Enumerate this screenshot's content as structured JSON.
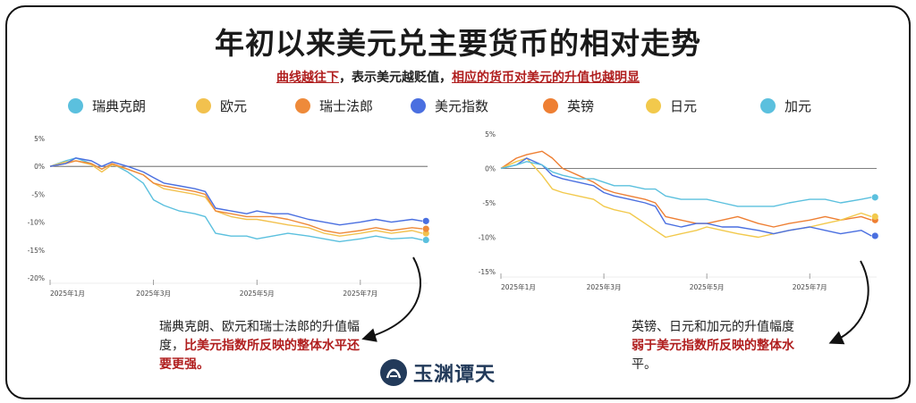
{
  "title": "年初以来美元兑主要货币的相对走势",
  "subtitle": {
    "part1": "曲线越往下",
    "part2": "，表示美元越贬值，",
    "part3": "相应的货币对美元的升值也越明显"
  },
  "legend": [
    {
      "label": "瑞典克朗",
      "color": "#5bc0de"
    },
    {
      "label": "欧元",
      "color": "#f2c14e"
    },
    {
      "label": "瑞士法郎",
      "color": "#ee8a3a"
    },
    {
      "label": "美元指数",
      "color": "#4a6fe0"
    },
    {
      "label": "英镑",
      "color": "#ee7f33"
    },
    {
      "label": "日元",
      "color": "#f2c94c"
    },
    {
      "label": "加元",
      "color": "#5bc0de"
    }
  ],
  "annotations": {
    "left_plain": "瑞典克朗、欧元和瑞士法郎的升值幅度，",
    "left_red": "比美元指数所反映的整体水平还要更强。",
    "right_plain": "英镑、日元和加元的升值幅度",
    "right_red": "弱于美元指数所反映的整体水",
    "right_tail": "平。"
  },
  "logo": {
    "text": "玉渊谭天"
  },
  "chart_data": [
    {
      "type": "line",
      "x_ticks": [
        "2025年1月",
        "2025年3月",
        "2025年5月",
        "2025年7月"
      ],
      "x_tick_months": [
        0,
        2,
        4,
        6
      ],
      "y_ticks": [
        "5%",
        "0%",
        "-5%",
        "-10%",
        "-15%",
        "-20%"
      ],
      "ylim": [
        -20,
        5
      ],
      "xlim_months": [
        0,
        7.3
      ],
      "series": [
        {
          "name": "瑞典克朗",
          "color": "#5bc0de",
          "x": [
            0,
            0.3,
            0.5,
            0.8,
            1.0,
            1.2,
            1.5,
            1.8,
            2.0,
            2.2,
            2.5,
            2.8,
            3.0,
            3.2,
            3.5,
            3.8,
            4.0,
            4.3,
            4.6,
            5.0,
            5.3,
            5.6,
            6.0,
            6.3,
            6.6,
            7.0,
            7.2
          ],
          "y": [
            0,
            1,
            1.5,
            0.5,
            -0.5,
            0.5,
            -1,
            -3,
            -6,
            -7,
            -8,
            -8.5,
            -9,
            -12,
            -12.5,
            -12.5,
            -13,
            -12.5,
            -12,
            -12.5,
            -13,
            -13.5,
            -13,
            -12.5,
            -13,
            -12.8,
            -13.2
          ]
        },
        {
          "name": "欧元",
          "color": "#f2c14e",
          "x": [
            0,
            0.3,
            0.5,
            0.8,
            1.0,
            1.2,
            1.5,
            1.8,
            2.0,
            2.2,
            2.5,
            2.8,
            3.0,
            3.2,
            3.5,
            3.8,
            4.0,
            4.3,
            4.6,
            5.0,
            5.3,
            5.6,
            6.0,
            6.3,
            6.6,
            7.0,
            7.2
          ],
          "y": [
            0,
            0.8,
            1,
            0.3,
            -1,
            0.3,
            -0.5,
            -1.5,
            -3,
            -4,
            -4.5,
            -5,
            -5.5,
            -8,
            -9,
            -9.5,
            -9.5,
            -10,
            -10.5,
            -11,
            -12,
            -12.5,
            -12,
            -11.5,
            -12,
            -11.5,
            -12
          ]
        },
        {
          "name": "瑞士法郎",
          "color": "#ee8a3a",
          "x": [
            0,
            0.3,
            0.5,
            0.8,
            1.0,
            1.2,
            1.5,
            1.8,
            2.0,
            2.2,
            2.5,
            2.8,
            3.0,
            3.2,
            3.5,
            3.8,
            4.0,
            4.3,
            4.6,
            5.0,
            5.3,
            5.6,
            6.0,
            6.3,
            6.6,
            7.0,
            7.2
          ],
          "y": [
            0,
            0.5,
            1,
            0.5,
            -0.5,
            0.5,
            -0.5,
            -1.5,
            -3,
            -3.5,
            -4,
            -4.5,
            -5,
            -8,
            -8.5,
            -9,
            -9,
            -9,
            -9.5,
            -10.5,
            -11.5,
            -12,
            -11.5,
            -11,
            -11.5,
            -11,
            -11.2
          ]
        },
        {
          "name": "美元指数",
          "color": "#4a6fe0",
          "x": [
            0,
            0.3,
            0.5,
            0.8,
            1.0,
            1.2,
            1.5,
            1.8,
            2.0,
            2.2,
            2.5,
            2.8,
            3.0,
            3.2,
            3.5,
            3.8,
            4.0,
            4.3,
            4.6,
            5.0,
            5.3,
            5.6,
            6.0,
            6.3,
            6.6,
            7.0,
            7.2
          ],
          "y": [
            0,
            0.5,
            1.5,
            1,
            0,
            0.8,
            0,
            -1,
            -2,
            -3,
            -3.5,
            -4,
            -4.5,
            -7.5,
            -8,
            -8.5,
            -8,
            -8.5,
            -8.5,
            -9.5,
            -10,
            -10.5,
            -10,
            -9.5,
            -10,
            -9.5,
            -9.8
          ]
        }
      ]
    },
    {
      "type": "line",
      "x_ticks": [
        "2025年1月",
        "2025年3月",
        "2025年5月",
        "2025年7月"
      ],
      "x_tick_months": [
        0,
        2,
        4,
        6
      ],
      "y_ticks": [
        "5%",
        "0%",
        "-5%",
        "-10%",
        "-15%"
      ],
      "ylim": [
        -15,
        5
      ],
      "xlim_months": [
        0,
        7.3
      ],
      "series": [
        {
          "name": "英镑",
          "color": "#ee7f33",
          "x": [
            0,
            0.3,
            0.5,
            0.8,
            1.0,
            1.2,
            1.5,
            1.8,
            2.0,
            2.2,
            2.5,
            2.8,
            3.0,
            3.2,
            3.5,
            3.8,
            4.0,
            4.3,
            4.6,
            5.0,
            5.3,
            5.6,
            6.0,
            6.3,
            6.6,
            7.0,
            7.2
          ],
          "y": [
            0,
            1.5,
            2,
            2.5,
            1.5,
            0,
            -1,
            -2,
            -3,
            -3.5,
            -4,
            -4.5,
            -5,
            -7,
            -7.5,
            -8,
            -8,
            -7.5,
            -7,
            -8,
            -8.5,
            -8,
            -7.5,
            -7,
            -7.5,
            -7,
            -7.5
          ]
        },
        {
          "name": "日元",
          "color": "#f2c94c",
          "x": [
            0,
            0.3,
            0.5,
            0.8,
            1.0,
            1.2,
            1.5,
            1.8,
            2.0,
            2.2,
            2.5,
            2.8,
            3.0,
            3.2,
            3.5,
            3.8,
            4.0,
            4.3,
            4.6,
            5.0,
            5.3,
            5.6,
            6.0,
            6.3,
            6.6,
            7.0,
            7.2
          ],
          "y": [
            0,
            1,
            1.5,
            -1,
            -3,
            -3.5,
            -4,
            -4.5,
            -5.5,
            -6,
            -6.5,
            -8,
            -9,
            -10,
            -9.5,
            -9,
            -8.5,
            -9,
            -9.5,
            -10,
            -9.5,
            -9,
            -8.5,
            -8,
            -7.5,
            -6.5,
            -7
          ]
        },
        {
          "name": "美元指数",
          "color": "#4a6fe0",
          "x": [
            0,
            0.3,
            0.5,
            0.8,
            1.0,
            1.2,
            1.5,
            1.8,
            2.0,
            2.2,
            2.5,
            2.8,
            3.0,
            3.2,
            3.5,
            3.8,
            4.0,
            4.3,
            4.6,
            5.0,
            5.3,
            5.6,
            6.0,
            6.3,
            6.6,
            7.0,
            7.2
          ],
          "y": [
            0,
            0.5,
            1.5,
            0.5,
            -1,
            -1.5,
            -2,
            -2.5,
            -3.5,
            -4,
            -4.5,
            -5,
            -5.5,
            -8,
            -8.5,
            -8,
            -8,
            -8.5,
            -8.5,
            -9,
            -9.5,
            -9,
            -8.5,
            -9,
            -9.5,
            -9,
            -9.8
          ]
        },
        {
          "name": "加元",
          "color": "#5bc0de",
          "x": [
            0,
            0.3,
            0.5,
            0.8,
            1.0,
            1.2,
            1.5,
            1.8,
            2.0,
            2.2,
            2.5,
            2.8,
            3.0,
            3.2,
            3.5,
            3.8,
            4.0,
            4.3,
            4.6,
            5.0,
            5.3,
            5.6,
            6.0,
            6.3,
            6.6,
            7.0,
            7.2
          ],
          "y": [
            0,
            0.5,
            1,
            0.5,
            -0.5,
            -1,
            -1.5,
            -1.5,
            -2,
            -2.5,
            -2.5,
            -3,
            -3,
            -4,
            -4.5,
            -4.5,
            -4.5,
            -5,
            -5.5,
            -5.5,
            -5.5,
            -5,
            -4.5,
            -4.5,
            -5,
            -4.5,
            -4.2
          ]
        }
      ]
    }
  ]
}
